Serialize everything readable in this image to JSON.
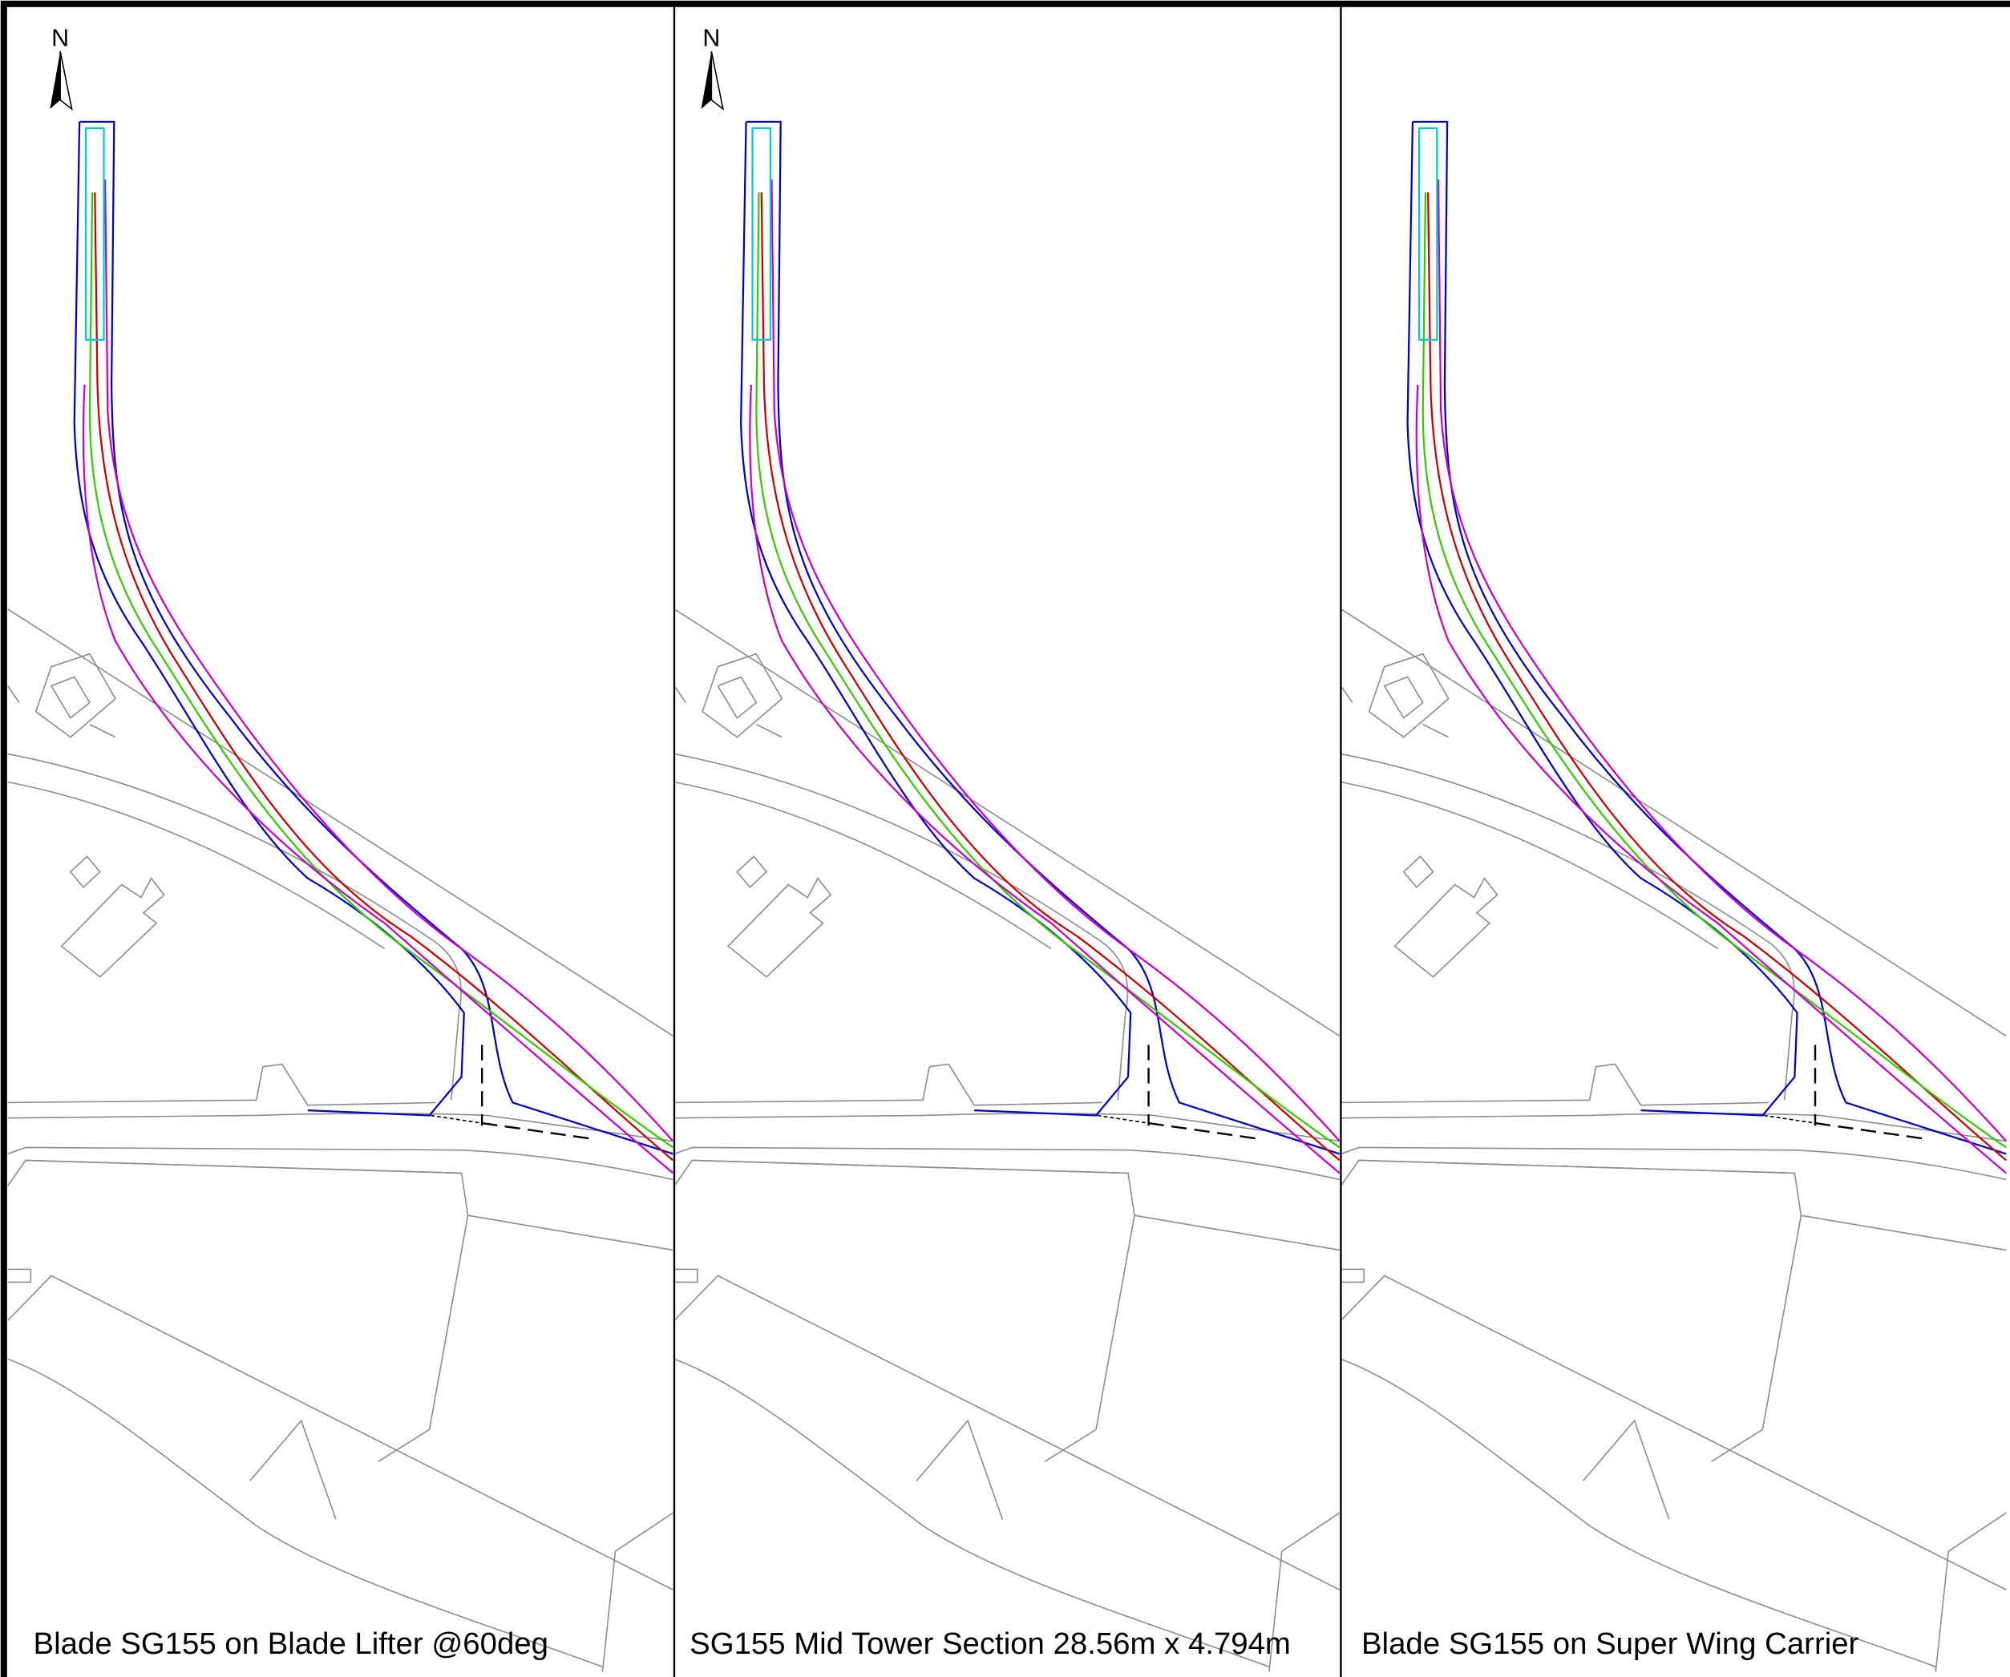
{
  "north_label": "N",
  "panels": [
    {
      "north": "N",
      "caption": "Blade SG155 on Blade Lifter @60deg"
    },
    {
      "north": "N",
      "caption": "SG155 Mid Tower Section 28.56m x 4.794m"
    },
    {
      "caption": "Blade SG155 on Super Wing Carrier"
    }
  ]
}
